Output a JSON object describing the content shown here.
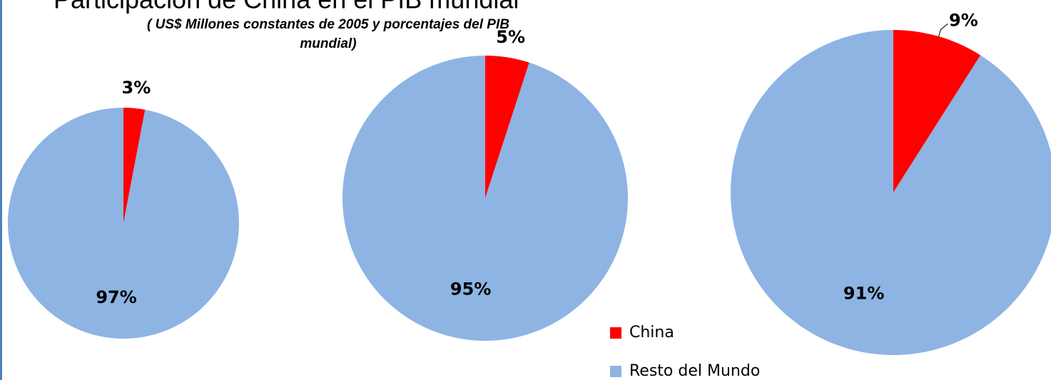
{
  "chart_data": [
    {
      "type": "pie",
      "title": "Participación de China en el PIB mundial",
      "subtitle": "( US$ Millones constantes de 2005 y porcentajes del PIB mundial)",
      "categories": [
        "China",
        "Resto del Mundo"
      ],
      "colors": [
        "#ff0000",
        "#8eb4e3"
      ],
      "values": [
        3,
        97
      ],
      "value_labels": [
        "3%",
        "97%"
      ]
    },
    {
      "type": "pie",
      "values": [
        5,
        95
      ],
      "value_labels": [
        "5%",
        "95%"
      ]
    },
    {
      "type": "pie",
      "values": [
        9,
        91
      ],
      "value_labels": [
        "9%",
        "91%"
      ]
    }
  ]
}
